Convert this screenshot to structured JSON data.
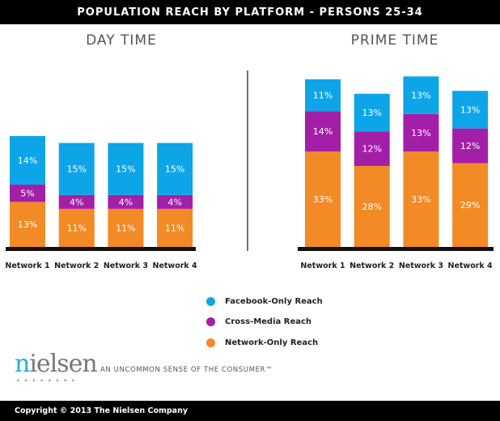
{
  "title": "POPULATION REACH BY PLATFORM - PERSONS 25-34",
  "colors": {
    "facebook": "#0ea5e8",
    "cross": "#a41fa8",
    "network": "#f28a25"
  },
  "chart_data": [
    {
      "type": "bar",
      "stacked": true,
      "title": "DAY TIME",
      "categories": [
        "Network 1",
        "Network 2",
        "Network 3",
        "Network 4"
      ],
      "series": [
        {
          "name": "Network-Only Reach",
          "values": [
            13,
            11,
            11,
            11
          ]
        },
        {
          "name": "Cross-Media Reach",
          "values": [
            5,
            4,
            4,
            4
          ]
        },
        {
          "name": "Facebook-Only Reach",
          "values": [
            14,
            15,
            15,
            15
          ]
        }
      ],
      "unit": "%"
    },
    {
      "type": "bar",
      "stacked": true,
      "title": "PRIME TIME",
      "categories": [
        "Network 1",
        "Network 2",
        "Network 3",
        "Network 4"
      ],
      "series": [
        {
          "name": "Network-Only Reach",
          "values": [
            33,
            28,
            33,
            29
          ]
        },
        {
          "name": "Cross-Media Reach",
          "values": [
            14,
            12,
            13,
            12
          ]
        },
        {
          "name": "Facebook-Only Reach",
          "values": [
            11,
            13,
            13,
            13
          ]
        }
      ],
      "unit": "%"
    }
  ],
  "legend": [
    {
      "label": "Facebook-Only Reach",
      "color": "#0ea5e8"
    },
    {
      "label": "Cross-Media Reach",
      "color": "#a41fa8"
    },
    {
      "label": "Network-Only Reach",
      "color": "#f28a25"
    }
  ],
  "logo": "nielsen",
  "tagline": "AN UNCOMMON SENSE OF THE CONSUMER™",
  "footer": "Copyright © 2013 The Nielsen Company"
}
